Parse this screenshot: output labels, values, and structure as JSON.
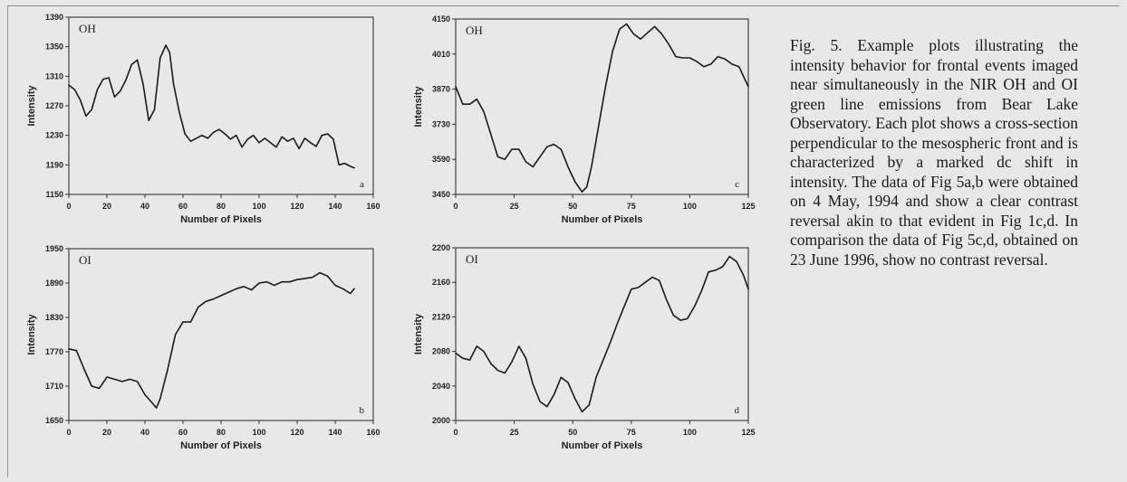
{
  "caption": "Fig. 5. Example plots illustrating the intensity behavior for frontal events imaged near simultaneously in the NIR OH and OI green line emissions from Bear Lake Observatory.  Each plot shows a cross-section perpendicular to the mesospheric front and is characterized by a marked dc shift in intensity.  The data of Fig 5a,b were obtained on 4 May, 1994 and show a clear contrast reversal akin to that evident in Fig 1c,d.  In comparison the data of Fig 5c,d, obtained on 23 June 1996, show no contrast reversal.",
  "chart_data": [
    {
      "type": "line",
      "panel": "a",
      "title": "OH",
      "xlabel": "Number of Pixels",
      "ylabel": "Intensity",
      "xlim": [
        0,
        160
      ],
      "ylim": [
        1150,
        1390
      ],
      "xticks": [
        0,
        20,
        40,
        60,
        80,
        100,
        120,
        140,
        160
      ],
      "yticks": [
        1150,
        1190,
        1230,
        1270,
        1310,
        1350,
        1390
      ],
      "x": [
        0,
        3,
        6,
        9,
        12,
        15,
        18,
        21,
        24,
        27,
        30,
        33,
        36,
        39,
        42,
        45,
        48,
        51,
        53,
        55,
        58,
        61,
        64,
        67,
        70,
        73,
        76,
        79,
        82,
        85,
        88,
        91,
        94,
        97,
        100,
        103,
        106,
        109,
        112,
        115,
        118,
        121,
        124,
        127,
        130,
        133,
        136,
        139,
        142,
        145,
        148,
        150
      ],
      "y": [
        1298,
        1292,
        1278,
        1256,
        1265,
        1292,
        1306,
        1308,
        1282,
        1290,
        1305,
        1326,
        1332,
        1300,
        1250,
        1265,
        1335,
        1352,
        1342,
        1300,
        1262,
        1232,
        1222,
        1226,
        1230,
        1226,
        1234,
        1238,
        1232,
        1225,
        1230,
        1214,
        1225,
        1230,
        1220,
        1226,
        1220,
        1214,
        1228,
        1222,
        1226,
        1212,
        1226,
        1220,
        1215,
        1230,
        1232,
        1225,
        1190,
        1192,
        1188,
        1186
      ]
    },
    {
      "type": "line",
      "panel": "b",
      "title": "OI",
      "xlabel": "Number of Pixels",
      "ylabel": "Intensity",
      "xlim": [
        0,
        160
      ],
      "ylim": [
        1650,
        1950
      ],
      "xticks": [
        0,
        20,
        40,
        60,
        80,
        100,
        120,
        140,
        160
      ],
      "yticks": [
        1650,
        1710,
        1770,
        1830,
        1890,
        1950
      ],
      "x": [
        0,
        4,
        8,
        12,
        16,
        20,
        24,
        28,
        32,
        36,
        40,
        44,
        46,
        48,
        52,
        56,
        60,
        64,
        68,
        72,
        76,
        80,
        84,
        88,
        92,
        96,
        100,
        104,
        108,
        112,
        116,
        120,
        124,
        128,
        132,
        136,
        140,
        144,
        148,
        150
      ],
      "y": [
        1775,
        1772,
        1740,
        1710,
        1706,
        1726,
        1722,
        1718,
        1722,
        1718,
        1695,
        1680,
        1672,
        1688,
        1740,
        1800,
        1822,
        1822,
        1848,
        1858,
        1862,
        1868,
        1874,
        1880,
        1884,
        1878,
        1890,
        1892,
        1886,
        1892,
        1892,
        1896,
        1898,
        1900,
        1908,
        1902,
        1886,
        1880,
        1872,
        1880
      ]
    },
    {
      "type": "line",
      "panel": "c",
      "title": "OH",
      "xlabel": "Number of Pixels",
      "ylabel": "Intensity",
      "xlim": [
        0,
        125
      ],
      "ylim": [
        3450,
        4150
      ],
      "xticks": [
        0,
        25,
        50,
        75,
        100,
        125
      ],
      "yticks": [
        3450,
        3590,
        3730,
        3870,
        4010,
        4150
      ],
      "x": [
        0,
        3,
        6,
        9,
        12,
        15,
        18,
        21,
        24,
        27,
        30,
        33,
        36,
        39,
        42,
        45,
        48,
        51,
        54,
        56,
        58,
        61,
        64,
        67,
        70,
        73,
        76,
        79,
        82,
        85,
        88,
        91,
        94,
        97,
        100,
        103,
        106,
        109,
        112,
        115,
        118,
        121,
        124,
        125
      ],
      "y": [
        3880,
        3810,
        3810,
        3830,
        3780,
        3690,
        3600,
        3590,
        3630,
        3630,
        3580,
        3560,
        3600,
        3640,
        3650,
        3630,
        3560,
        3500,
        3460,
        3480,
        3560,
        3720,
        3880,
        4020,
        4110,
        4130,
        4090,
        4070,
        4095,
        4120,
        4090,
        4050,
        4000,
        3995,
        3995,
        3980,
        3960,
        3970,
        4000,
        3990,
        3970,
        3960,
        3900,
        3880
      ]
    },
    {
      "type": "line",
      "panel": "d",
      "title": "OI",
      "xlabel": "Number of Pixels",
      "ylabel": "Intensity",
      "xlim": [
        0,
        125
      ],
      "ylim": [
        2000,
        2200
      ],
      "xticks": [
        0,
        25,
        50,
        75,
        100,
        125
      ],
      "yticks": [
        2000,
        2040,
        2080,
        2120,
        2160,
        2200
      ],
      "x": [
        0,
        3,
        6,
        9,
        12,
        15,
        18,
        21,
        24,
        27,
        30,
        33,
        36,
        39,
        42,
        45,
        48,
        51,
        54,
        57,
        60,
        63,
        66,
        69,
        72,
        75,
        78,
        81,
        84,
        87,
        90,
        93,
        96,
        99,
        102,
        105,
        108,
        111,
        114,
        117,
        120,
        123,
        125
      ],
      "y": [
        2078,
        2072,
        2070,
        2086,
        2080,
        2066,
        2058,
        2055,
        2068,
        2086,
        2072,
        2042,
        2022,
        2016,
        2030,
        2050,
        2044,
        2025,
        2010,
        2018,
        2050,
        2070,
        2090,
        2112,
        2132,
        2152,
        2154,
        2160,
        2166,
        2162,
        2140,
        2122,
        2116,
        2118,
        2132,
        2150,
        2172,
        2174,
        2178,
        2190,
        2184,
        2168,
        2152
      ]
    }
  ]
}
